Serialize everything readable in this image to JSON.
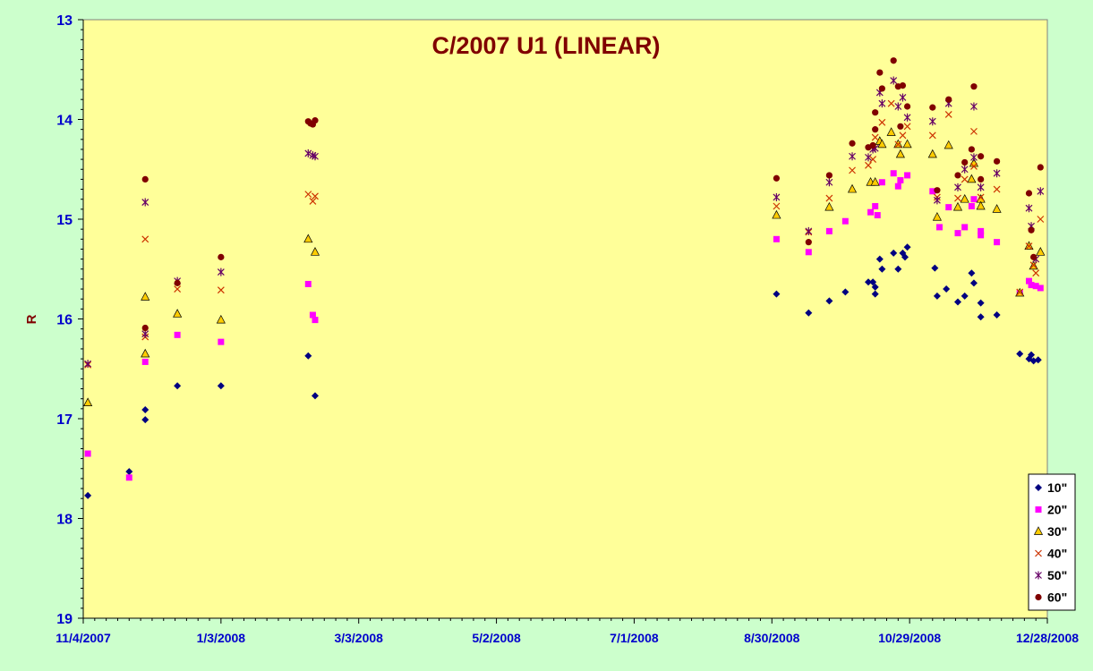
{
  "chart_data": {
    "type": "scatter",
    "title": "C/2007 U1 (LINEAR)",
    "xlabel": "",
    "ylabel": "R",
    "xlim": [
      "2007-11-04",
      "2008-12-28"
    ],
    "ylim": [
      13,
      19
    ],
    "y_reversed": true,
    "x_ticks": [
      "11/4/2007",
      "1/3/2008",
      "3/3/2008",
      "5/2/2008",
      "7/1/2008",
      "8/30/2008",
      "10/29/2008",
      "12/28/2008"
    ],
    "y_ticks": [
      "13",
      "14",
      "15",
      "16",
      "17",
      "18",
      "19"
    ],
    "grid": false,
    "legend_position": "bottom-right",
    "plot_background": "#ffff99",
    "outer_background": "#ccffcc",
    "series": [
      {
        "name": "10\"",
        "marker": "diamond",
        "color": "#000080",
        "points": [
          [
            "2007-11-06",
            17.77
          ],
          [
            "2007-11-24",
            17.53
          ],
          [
            "2007-12-01",
            16.91
          ],
          [
            "2007-12-01",
            17.01
          ],
          [
            "2007-12-15",
            16.67
          ],
          [
            "2008-01-03",
            16.67
          ],
          [
            "2008-02-10",
            16.37
          ],
          [
            "2008-02-13",
            16.77
          ],
          [
            "2008-09-01",
            15.75
          ],
          [
            "2008-09-15",
            15.94
          ],
          [
            "2008-09-24",
            15.82
          ],
          [
            "2008-10-01",
            15.73
          ],
          [
            "2008-10-11",
            15.63
          ],
          [
            "2008-10-13",
            15.63
          ],
          [
            "2008-10-14",
            15.68
          ],
          [
            "2008-10-14",
            15.75
          ],
          [
            "2008-10-16",
            15.4
          ],
          [
            "2008-10-17",
            15.5
          ],
          [
            "2008-10-22",
            15.34
          ],
          [
            "2008-10-24",
            15.5
          ],
          [
            "2008-10-26",
            15.34
          ],
          [
            "2008-10-27",
            15.38
          ],
          [
            "2008-10-28",
            15.28
          ],
          [
            "2008-11-09",
            15.49
          ],
          [
            "2008-11-10",
            15.77
          ],
          [
            "2008-11-14",
            15.7
          ],
          [
            "2008-11-19",
            15.83
          ],
          [
            "2008-11-22",
            15.77
          ],
          [
            "2008-11-25",
            15.54
          ],
          [
            "2008-11-26",
            15.64
          ],
          [
            "2008-11-29",
            15.84
          ],
          [
            "2008-11-29",
            15.98
          ],
          [
            "2008-12-06",
            15.96
          ],
          [
            "2008-12-16",
            16.35
          ],
          [
            "2008-12-20",
            16.4
          ],
          [
            "2008-12-21",
            16.36
          ],
          [
            "2008-12-22",
            16.42
          ],
          [
            "2008-12-24",
            16.41
          ]
        ]
      },
      {
        "name": "20\"",
        "marker": "square",
        "color": "#ff00ff",
        "points": [
          [
            "2007-11-06",
            17.35
          ],
          [
            "2007-11-24",
            17.59
          ],
          [
            "2007-12-01",
            16.43
          ],
          [
            "2007-12-15",
            16.16
          ],
          [
            "2008-01-03",
            16.23
          ],
          [
            "2008-02-10",
            15.65
          ],
          [
            "2008-02-12",
            15.96
          ],
          [
            "2008-02-13",
            16.01
          ],
          [
            "2008-09-01",
            15.2
          ],
          [
            "2008-09-15",
            15.33
          ],
          [
            "2008-09-24",
            15.12
          ],
          [
            "2008-10-01",
            15.02
          ],
          [
            "2008-10-12",
            14.93
          ],
          [
            "2008-10-14",
            14.87
          ],
          [
            "2008-10-15",
            14.96
          ],
          [
            "2008-10-17",
            14.63
          ],
          [
            "2008-10-22",
            14.54
          ],
          [
            "2008-10-24",
            14.67
          ],
          [
            "2008-10-25",
            14.61
          ],
          [
            "2008-10-28",
            14.56
          ],
          [
            "2008-11-08",
            14.72
          ],
          [
            "2008-11-11",
            15.08
          ],
          [
            "2008-11-15",
            14.88
          ],
          [
            "2008-11-19",
            15.14
          ],
          [
            "2008-11-22",
            15.08
          ],
          [
            "2008-11-25",
            14.87
          ],
          [
            "2008-11-26",
            14.8
          ],
          [
            "2008-11-29",
            15.12
          ],
          [
            "2008-11-29",
            15.16
          ],
          [
            "2008-12-06",
            15.23
          ],
          [
            "2008-12-16",
            15.74
          ],
          [
            "2008-12-20",
            15.62
          ],
          [
            "2008-12-21",
            15.66
          ],
          [
            "2008-12-23",
            15.67
          ],
          [
            "2008-12-25",
            15.69
          ]
        ]
      },
      {
        "name": "30\"",
        "marker": "triangle",
        "color": "#ffcc00",
        "points": [
          [
            "2007-11-06",
            16.84
          ],
          [
            "2007-12-01",
            16.35
          ],
          [
            "2007-12-01",
            15.78
          ],
          [
            "2007-12-15",
            15.95
          ],
          [
            "2008-01-03",
            16.01
          ],
          [
            "2008-02-10",
            15.2
          ],
          [
            "2008-02-13",
            15.33
          ],
          [
            "2008-09-01",
            14.96
          ],
          [
            "2008-09-24",
            14.88
          ],
          [
            "2008-10-04",
            14.7
          ],
          [
            "2008-10-12",
            14.63
          ],
          [
            "2008-10-14",
            14.63
          ],
          [
            "2008-10-16",
            14.22
          ],
          [
            "2008-10-17",
            14.25
          ],
          [
            "2008-10-21",
            14.13
          ],
          [
            "2008-10-24",
            14.25
          ],
          [
            "2008-10-25",
            14.35
          ],
          [
            "2008-10-28",
            14.25
          ],
          [
            "2008-11-08",
            14.35
          ],
          [
            "2008-11-10",
            14.98
          ],
          [
            "2008-11-15",
            14.26
          ],
          [
            "2008-11-19",
            14.88
          ],
          [
            "2008-11-22",
            14.8
          ],
          [
            "2008-11-25",
            14.6
          ],
          [
            "2008-11-26",
            14.44
          ],
          [
            "2008-11-29",
            14.8
          ],
          [
            "2008-11-29",
            14.87
          ],
          [
            "2008-12-06",
            14.9
          ],
          [
            "2008-12-16",
            15.74
          ],
          [
            "2008-12-20",
            15.27
          ],
          [
            "2008-12-22",
            15.47
          ],
          [
            "2008-12-25",
            15.33
          ]
        ]
      },
      {
        "name": "40\"",
        "marker": "x",
        "color": "#cc3300",
        "points": [
          [
            "2007-11-06",
            16.46
          ],
          [
            "2007-12-01",
            16.18
          ],
          [
            "2007-12-01",
            15.2
          ],
          [
            "2007-12-15",
            15.7
          ],
          [
            "2008-01-03",
            15.71
          ],
          [
            "2008-02-10",
            14.75
          ],
          [
            "2008-02-12",
            14.82
          ],
          [
            "2008-02-13",
            14.77
          ],
          [
            "2008-09-01",
            14.87
          ],
          [
            "2008-09-15",
            15.13
          ],
          [
            "2008-09-24",
            14.79
          ],
          [
            "2008-10-04",
            14.51
          ],
          [
            "2008-10-11",
            14.46
          ],
          [
            "2008-10-13",
            14.4
          ],
          [
            "2008-10-14",
            14.18
          ],
          [
            "2008-10-17",
            14.03
          ],
          [
            "2008-10-21",
            13.84
          ],
          [
            "2008-10-24",
            14.25
          ],
          [
            "2008-10-26",
            14.16
          ],
          [
            "2008-10-28",
            14.07
          ],
          [
            "2008-11-08",
            14.16
          ],
          [
            "2008-11-10",
            14.78
          ],
          [
            "2008-11-15",
            13.95
          ],
          [
            "2008-11-19",
            14.79
          ],
          [
            "2008-11-22",
            14.6
          ],
          [
            "2008-11-26",
            14.12
          ],
          [
            "2008-11-26",
            14.47
          ],
          [
            "2008-11-29",
            14.78
          ],
          [
            "2008-12-06",
            14.7
          ],
          [
            "2008-12-16",
            15.73
          ],
          [
            "2008-12-20",
            15.27
          ],
          [
            "2008-12-22",
            15.46
          ],
          [
            "2008-12-23",
            15.54
          ],
          [
            "2008-12-25",
            15.0
          ]
        ]
      },
      {
        "name": "50\"",
        "marker": "star",
        "color": "#660066",
        "points": [
          [
            "2007-11-06",
            16.45
          ],
          [
            "2007-12-01",
            16.15
          ],
          [
            "2007-12-01",
            14.83
          ],
          [
            "2007-12-15",
            15.62
          ],
          [
            "2008-01-03",
            15.53
          ],
          [
            "2008-02-10",
            14.34
          ],
          [
            "2008-02-12",
            14.36
          ],
          [
            "2008-02-13",
            14.37
          ],
          [
            "2008-09-01",
            14.78
          ],
          [
            "2008-09-15",
            15.12
          ],
          [
            "2008-09-24",
            14.63
          ],
          [
            "2008-10-04",
            14.37
          ],
          [
            "2008-10-11",
            14.38
          ],
          [
            "2008-10-13",
            14.3
          ],
          [
            "2008-10-14",
            14.29
          ],
          [
            "2008-10-16",
            13.73
          ],
          [
            "2008-10-17",
            13.84
          ],
          [
            "2008-10-22",
            13.61
          ],
          [
            "2008-10-24",
            13.87
          ],
          [
            "2008-10-26",
            13.78
          ],
          [
            "2008-10-28",
            13.98
          ],
          [
            "2008-11-08",
            14.02
          ],
          [
            "2008-11-10",
            14.81
          ],
          [
            "2008-11-15",
            13.84
          ],
          [
            "2008-11-19",
            14.68
          ],
          [
            "2008-11-22",
            14.5
          ],
          [
            "2008-11-26",
            13.87
          ],
          [
            "2008-11-26",
            14.38
          ],
          [
            "2008-11-29",
            14.68
          ],
          [
            "2008-12-06",
            14.54
          ],
          [
            "2008-12-20",
            14.89
          ],
          [
            "2008-12-21",
            15.07
          ],
          [
            "2008-12-23",
            15.4
          ],
          [
            "2008-12-25",
            14.72
          ]
        ]
      },
      {
        "name": "60\"",
        "marker": "circle",
        "color": "#800000",
        "points": [
          [
            "2007-12-01",
            16.09
          ],
          [
            "2007-12-01",
            14.6
          ],
          [
            "2007-12-15",
            15.64
          ],
          [
            "2008-01-03",
            15.38
          ],
          [
            "2008-02-10",
            14.02
          ],
          [
            "2008-02-11",
            14.04
          ],
          [
            "2008-02-12",
            14.05
          ],
          [
            "2008-02-13",
            14.01
          ],
          [
            "2008-09-01",
            14.59
          ],
          [
            "2008-09-15",
            15.23
          ],
          [
            "2008-09-24",
            14.56
          ],
          [
            "2008-10-04",
            14.24
          ],
          [
            "2008-10-11",
            14.28
          ],
          [
            "2008-10-13",
            14.26
          ],
          [
            "2008-10-14",
            13.93
          ],
          [
            "2008-10-14",
            14.1
          ],
          [
            "2008-10-16",
            13.53
          ],
          [
            "2008-10-17",
            13.69
          ],
          [
            "2008-10-22",
            13.41
          ],
          [
            "2008-10-24",
            13.67
          ],
          [
            "2008-10-25",
            14.07
          ],
          [
            "2008-10-26",
            13.66
          ],
          [
            "2008-10-28",
            13.87
          ],
          [
            "2008-11-08",
            13.88
          ],
          [
            "2008-11-10",
            14.71
          ],
          [
            "2008-11-15",
            13.8
          ],
          [
            "2008-11-19",
            14.56
          ],
          [
            "2008-11-22",
            14.43
          ],
          [
            "2008-11-25",
            14.3
          ],
          [
            "2008-11-26",
            13.67
          ],
          [
            "2008-11-29",
            14.37
          ],
          [
            "2008-11-29",
            14.6
          ],
          [
            "2008-12-06",
            14.42
          ],
          [
            "2008-12-20",
            14.74
          ],
          [
            "2008-12-21",
            15.11
          ],
          [
            "2008-12-22",
            15.38
          ],
          [
            "2008-12-25",
            14.48
          ]
        ]
      }
    ]
  }
}
